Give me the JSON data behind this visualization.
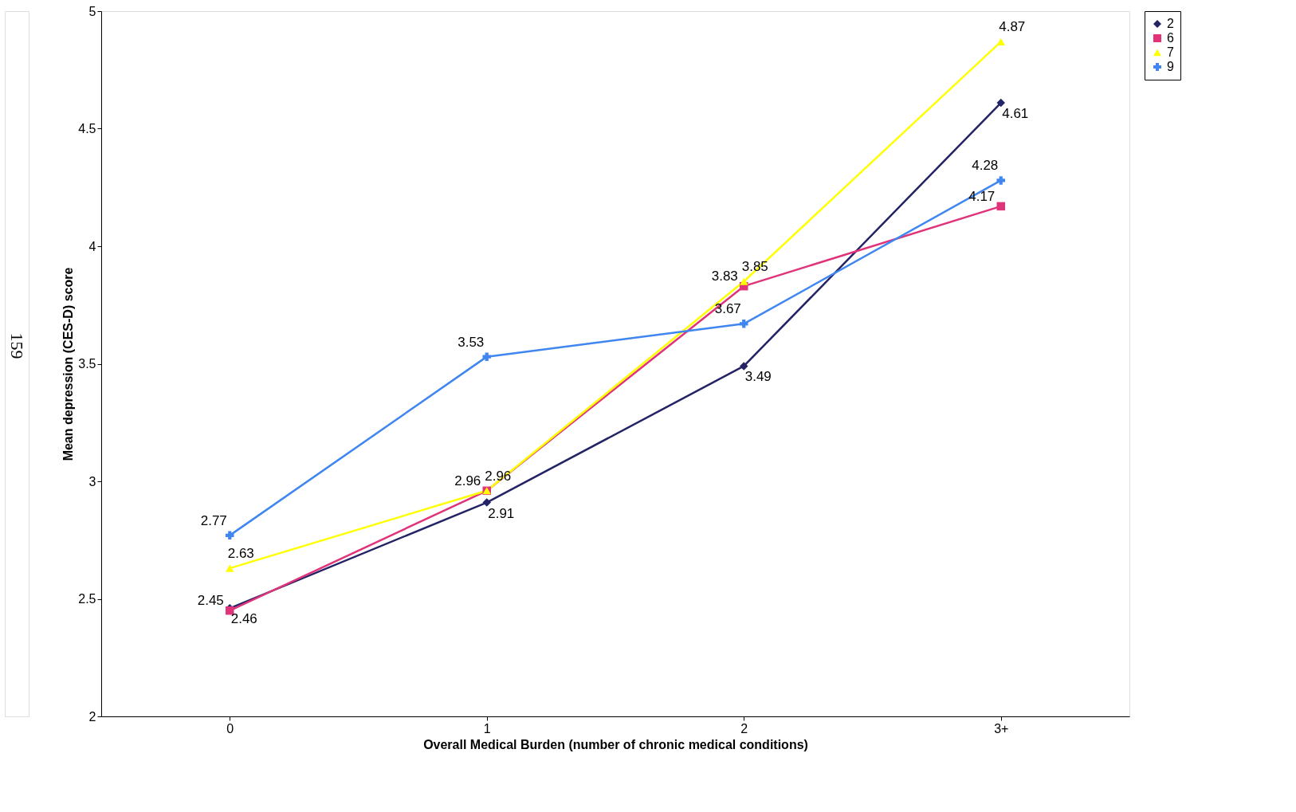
{
  "chart_data": {
    "type": "line",
    "xlabel": "Overall Medical Burden (number of chronic medical conditions)",
    "ylabel": "Mean depression (CES-D) score",
    "categories": [
      "0",
      "1",
      "2",
      "3+"
    ],
    "series": [
      {
        "name": "2",
        "color": "#232366",
        "marker": "diamond",
        "values": [
          2.46,
          2.91,
          3.49,
          4.61
        ]
      },
      {
        "name": "6",
        "color": "#e0337a",
        "marker": "square",
        "values": [
          2.45,
          2.96,
          3.83,
          4.17
        ]
      },
      {
        "name": "7",
        "color": "#ffff00",
        "marker": "triangle",
        "values": [
          2.63,
          2.96,
          3.85,
          4.87
        ]
      },
      {
        "name": "9",
        "color": "#3f86f0",
        "marker": "cross",
        "values": [
          2.77,
          3.53,
          3.67,
          4.28
        ]
      }
    ],
    "ylim": [
      2,
      5
    ],
    "yticks": [
      2,
      2.5,
      3,
      3.5,
      4,
      4.5,
      5
    ],
    "grid": false,
    "legend": "right",
    "data_labels": true,
    "line_style": "solid",
    "annotations": [
      "159"
    ]
  }
}
